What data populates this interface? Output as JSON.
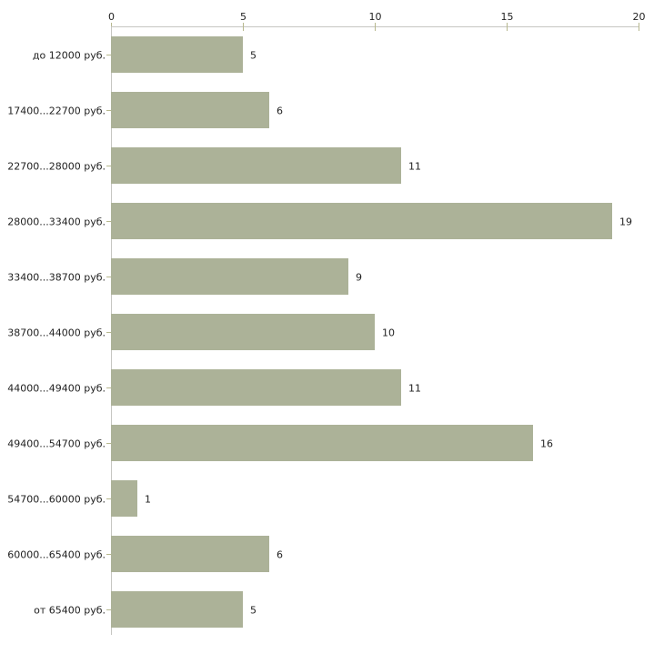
{
  "chart_data": {
    "type": "bar",
    "orientation": "horizontal",
    "title": "",
    "xlabel": "",
    "ylabel": "",
    "categories": [
      "до 12000 руб.",
      "17400...22700 руб.",
      "22700...28000 руб.",
      "28000...33400 руб.",
      "33400...38700 руб.",
      "38700...44000 руб.",
      "44000...49400 руб.",
      "49400...54700 руб.",
      "54700...60000 руб.",
      "60000...65400 руб.",
      "от 65400 руб."
    ],
    "values": [
      5,
      6,
      11,
      19,
      9,
      10,
      11,
      16,
      1,
      6,
      5
    ],
    "x_ticks": [
      0,
      5,
      10,
      15,
      20
    ],
    "xlim": [
      0,
      20
    ],
    "grid": false,
    "legend": "none",
    "value_labels_shown": true,
    "axis_position": "top",
    "colors": {
      "bar_fill": "#acb298",
      "axis_line": "#c6c6c2",
      "tick_mark": "#b7b88e",
      "text": "#1f1f1f",
      "background": "#ffffff"
    }
  }
}
